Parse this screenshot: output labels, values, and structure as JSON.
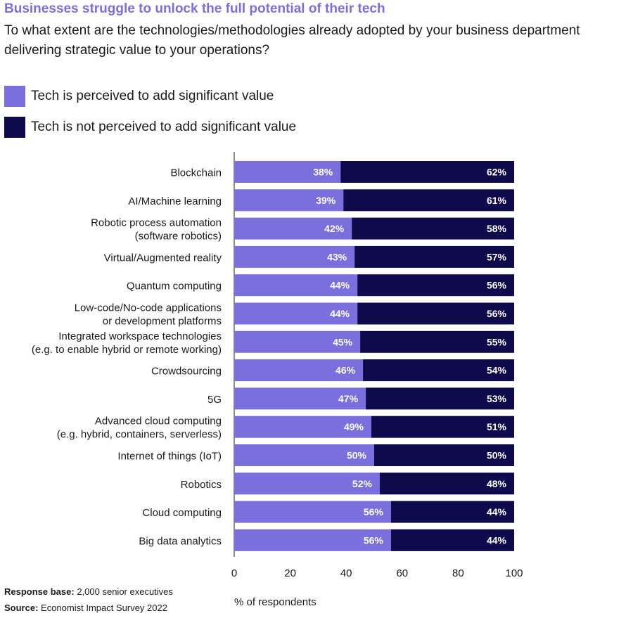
{
  "header": {
    "title": "Businesses struggle to unlock the full potential of their tech",
    "subtitle": "To what extent are the technologies/methodologies already adopted by your business department delivering strategic value to your operations?"
  },
  "colors": {
    "perceived": "#7a6fdc",
    "not_perceived": "#0f0a4b",
    "title": "#7b6fe0"
  },
  "chart_data": {
    "type": "bar",
    "orientation": "horizontal",
    "stacked": true,
    "title": "Businesses struggle to unlock the full potential of their tech",
    "xlabel": "% of respondents",
    "ylabel": "",
    "xlim": [
      0,
      100
    ],
    "xticks": [
      0,
      20,
      40,
      60,
      80,
      100
    ],
    "legend_position": "top-left",
    "categories": [
      [
        "Blockchain"
      ],
      [
        "AI/Machine learning"
      ],
      [
        "Robotic process automation",
        "(software robotics)"
      ],
      [
        "Virtual/Augmented reality"
      ],
      [
        "Quantum computing"
      ],
      [
        "Low-code/No-code applications",
        "or development platforms"
      ],
      [
        "Integrated workspace technologies",
        "(e.g. to enable hybrid or remote working)"
      ],
      [
        "Crowdsourcing"
      ],
      [
        "5G"
      ],
      [
        "Advanced cloud computing",
        "(e.g. hybrid, containers, serverless)"
      ],
      [
        "Internet of things (IoT)"
      ],
      [
        "Robotics"
      ],
      [
        "Cloud computing"
      ],
      [
        "Big data analytics"
      ]
    ],
    "series": [
      {
        "name": "Tech is perceived to add significant value",
        "values": [
          38,
          39,
          42,
          43,
          44,
          44,
          45,
          46,
          47,
          49,
          50,
          52,
          56,
          56
        ]
      },
      {
        "name": "Tech is not perceived to add significant value",
        "values": [
          62,
          61,
          58,
          57,
          56,
          56,
          55,
          54,
          53,
          51,
          50,
          48,
          44,
          44
        ]
      }
    ]
  },
  "footer": {
    "response_base_label": "Response base:",
    "response_base_value": "2,000 senior executives",
    "source_label": "Source:",
    "source_value": "Economist Impact Survey 2022"
  }
}
